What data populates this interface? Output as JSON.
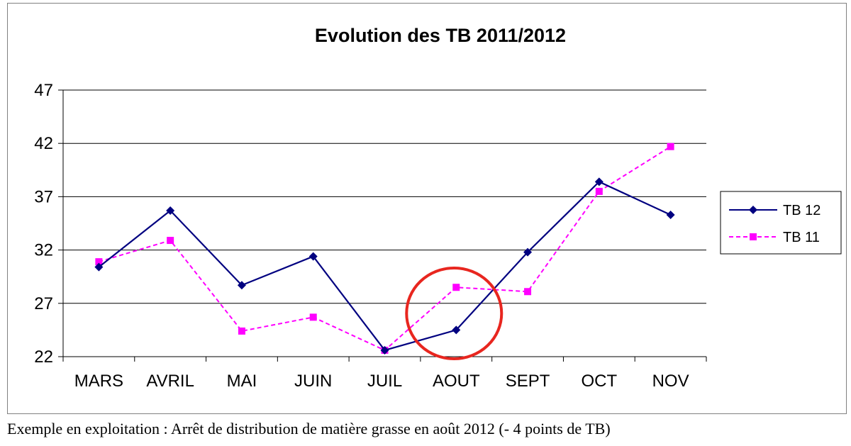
{
  "chart_data": {
    "type": "line",
    "title": "Evolution des TB 2011/2012",
    "categories": [
      "MARS",
      "AVRIL",
      "MAI",
      "JUIN",
      "JUIL",
      "AOUT",
      "SEPT",
      "OCT",
      "NOV"
    ],
    "ylim": [
      22,
      47
    ],
    "yticks": [
      "22",
      "27",
      "32",
      "37",
      "42",
      "47"
    ],
    "grid": true,
    "legend_position": "right",
    "series": [
      {
        "name": "TB 12",
        "color": "#000080",
        "marker": "diamond",
        "line": "solid",
        "values": [
          30.4,
          35.7,
          28.7,
          31.4,
          22.6,
          24.5,
          31.8,
          38.4,
          35.3
        ]
      },
      {
        "name": "TB 11",
        "color": "#ff00ff",
        "marker": "square",
        "line": "dashed",
        "values": [
          30.9,
          32.9,
          24.4,
          25.7,
          22.6,
          28.5,
          28.1,
          37.5,
          41.7
        ]
      }
    ],
    "annotation": {
      "type": "circle",
      "color": "#e8261f",
      "at_category": "AOUT"
    }
  },
  "caption": "Exemple en exploitation : Arrêt de distribution de matière grasse en août 2012 (- 4 points de TB)"
}
